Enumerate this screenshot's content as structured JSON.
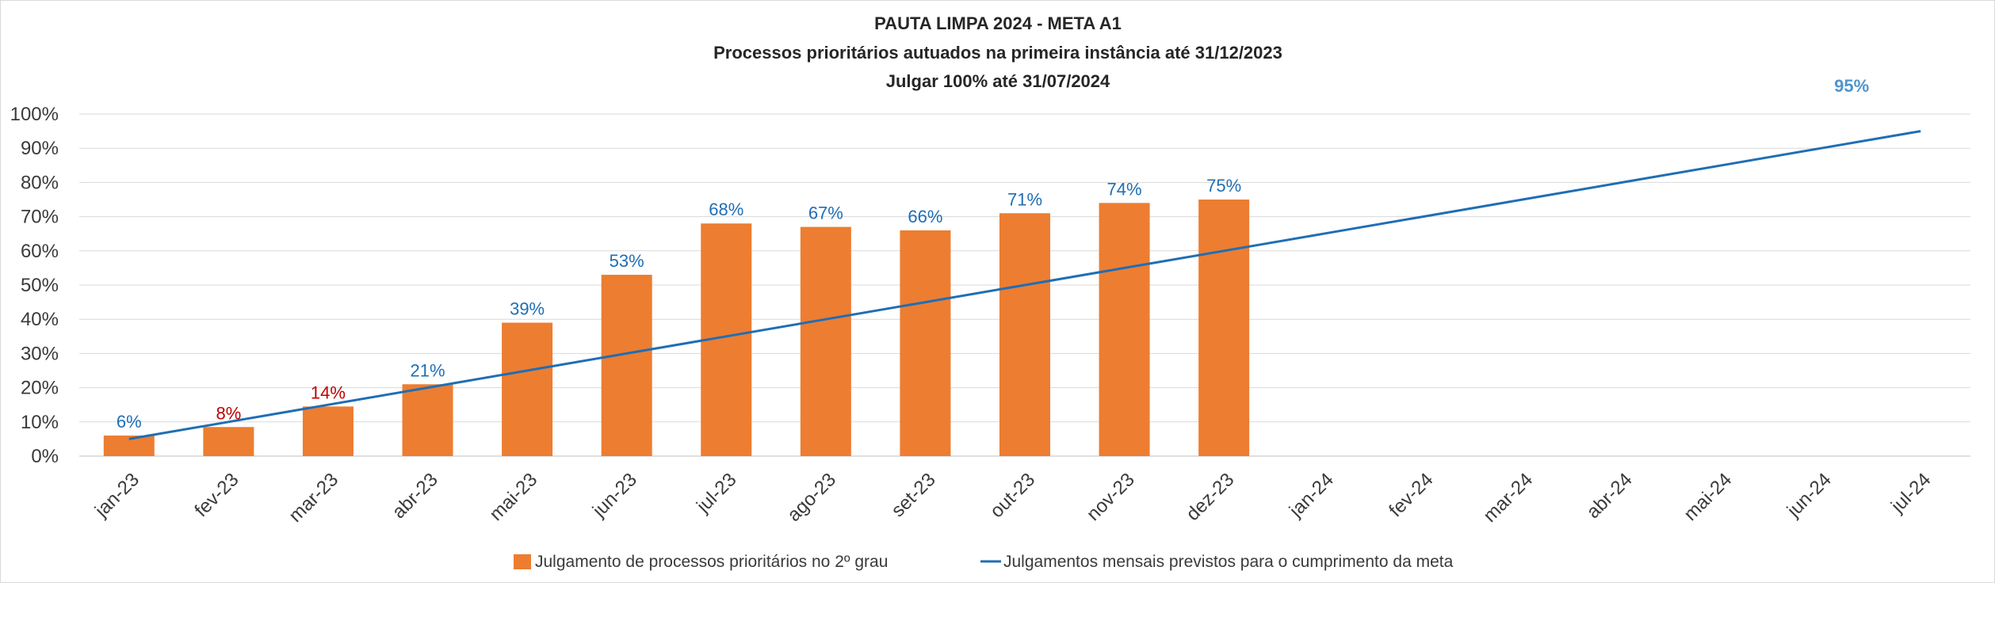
{
  "chart_data": {
    "type": "bar",
    "title_lines": [
      "PAUTA LIMPA 2024 - META A1",
      "Processos prioritários autuados na primeira instância até 31/12/2023",
      "Julgar 100% até 31/07/2024"
    ],
    "categories": [
      "jan-23",
      "fev-23",
      "mar-23",
      "abr-23",
      "mai-23",
      "jun-23",
      "jul-23",
      "ago-23",
      "set-23",
      "out-23",
      "nov-23",
      "dez-23",
      "jan-24",
      "fev-24",
      "mar-24",
      "abr-24",
      "mai-24",
      "jun-24",
      "jul-24"
    ],
    "y_tick_labels": [
      "0%",
      "10%",
      "20%",
      "30%",
      "40%",
      "50%",
      "60%",
      "70%",
      "80%",
      "90%",
      "100%"
    ],
    "ylim": [
      0,
      100
    ],
    "grid": true,
    "legend_position": "bottom",
    "series": [
      {
        "name": "Julgamento de processos prioritários no 2º grau",
        "kind": "bar",
        "color": "#ED7D31",
        "values": [
          6,
          8.5,
          14.5,
          21,
          39,
          53,
          68,
          67,
          66,
          71,
          74,
          75,
          null,
          null,
          null,
          null,
          null,
          null,
          null
        ],
        "labels": [
          "6%",
          "8%",
          "14%",
          "21%",
          "39%",
          "53%",
          "68%",
          "67%",
          "66%",
          "71%",
          "74%",
          "75%",
          "",
          "",
          "",
          "",
          "",
          "",
          ""
        ],
        "label_colors": [
          "#1f6eb5",
          "#c00000",
          "#c00000",
          "#1f6eb5",
          "#1f6eb5",
          "#1f6eb5",
          "#1f6eb5",
          "#1f6eb5",
          "#1f6eb5",
          "#1f6eb5",
          "#1f6eb5",
          "#1f6eb5",
          "",
          "",
          "",
          "",
          "",
          "",
          ""
        ]
      },
      {
        "name": "Julgamentos mensais previstos para o cumprimento da meta",
        "kind": "line",
        "color": "#1f6eb5",
        "values": [
          5,
          10,
          15,
          20,
          25,
          30,
          35,
          40,
          45,
          50,
          55,
          60,
          65,
          70,
          75,
          80,
          85,
          90,
          95
        ],
        "end_label": "95%",
        "end_label_color": "#4f94cd"
      }
    ]
  }
}
